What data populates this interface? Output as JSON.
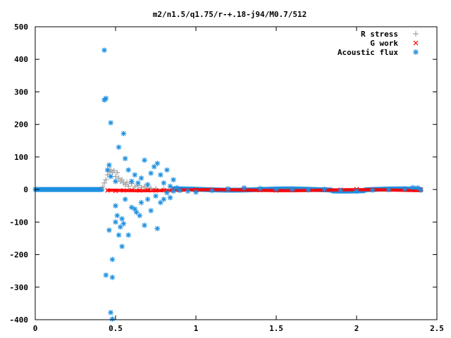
{
  "chart_data": {
    "type": "scatter",
    "title": "m2/n1.5/q1.75/r-+.18-j94/M0.7/512",
    "xlabel": "",
    "ylabel": "",
    "xlim": [
      0,
      2.5
    ],
    "ylim": [
      -400,
      500
    ],
    "x_ticks": [
      "0",
      "0.5",
      "1",
      "1.5",
      "2",
      "2.5"
    ],
    "y_ticks": [
      "500",
      "400",
      "300",
      "200",
      "100",
      "0",
      "-100",
      "-200",
      "-300",
      "-400"
    ],
    "grid": false,
    "legend_position": "top-right",
    "series": [
      {
        "name": "R stress",
        "marker": "plus",
        "color": "#a0a0a0",
        "points": [
          [
            0.42,
            8
          ],
          [
            0.43,
            20
          ],
          [
            0.44,
            30
          ],
          [
            0.45,
            45
          ],
          [
            0.46,
            55
          ],
          [
            0.47,
            60
          ],
          [
            0.48,
            52
          ],
          [
            0.49,
            58
          ],
          [
            0.5,
            40
          ],
          [
            0.51,
            52
          ],
          [
            0.52,
            35
          ],
          [
            0.53,
            25
          ],
          [
            0.54,
            30
          ],
          [
            0.55,
            20
          ],
          [
            0.56,
            15
          ],
          [
            0.57,
            22
          ],
          [
            0.58,
            10
          ],
          [
            0.6,
            18
          ],
          [
            0.62,
            8
          ],
          [
            0.64,
            12
          ],
          [
            0.66,
            6
          ],
          [
            0.68,
            10
          ],
          [
            0.7,
            5
          ],
          [
            0.72,
            4
          ],
          [
            0.75,
            3
          ],
          [
            0.8,
            2
          ],
          [
            0.85,
            1
          ]
        ]
      },
      {
        "name": "G work",
        "marker": "cross",
        "color": "#ff0000",
        "points": [
          [
            0.45,
            -3
          ],
          [
            0.5,
            -4
          ],
          [
            0.55,
            -3
          ],
          [
            0.6,
            -2
          ],
          [
            0.65,
            -3
          ],
          [
            0.7,
            -2
          ],
          [
            0.75,
            -3
          ],
          [
            0.8,
            -2
          ],
          [
            0.85,
            -1
          ],
          [
            0.9,
            -1
          ],
          [
            1.0,
            -1
          ],
          [
            1.1,
            0
          ],
          [
            1.2,
            1
          ],
          [
            1.3,
            1
          ],
          [
            1.4,
            -2
          ],
          [
            1.5,
            -3
          ],
          [
            1.6,
            -2
          ],
          [
            1.7,
            -1
          ],
          [
            1.8,
            0
          ],
          [
            1.9,
            -1
          ],
          [
            2.0,
            1
          ],
          [
            2.1,
            0
          ],
          [
            2.2,
            -1
          ],
          [
            2.3,
            0
          ],
          [
            2.4,
            0
          ]
        ]
      },
      {
        "name": "Acoustic flux",
        "marker": "star",
        "color": "#1e90e0",
        "points": [
          [
            0.43,
            428
          ],
          [
            0.43,
            275
          ],
          [
            0.44,
            280
          ],
          [
            0.47,
            205
          ],
          [
            0.44,
            -263
          ],
          [
            0.48,
            -270
          ],
          [
            0.48,
            -215
          ],
          [
            0.47,
            -378
          ],
          [
            0.48,
            -398
          ],
          [
            0.46,
            -125
          ],
          [
            0.5,
            -100
          ],
          [
            0.5,
            -50
          ],
          [
            0.51,
            -80
          ],
          [
            0.52,
            -140
          ],
          [
            0.53,
            -115
          ],
          [
            0.54,
            -175
          ],
          [
            0.54,
            -90
          ],
          [
            0.55,
            -105
          ],
          [
            0.58,
            -140
          ],
          [
            0.56,
            -30
          ],
          [
            0.6,
            -55
          ],
          [
            0.62,
            -60
          ],
          [
            0.63,
            -70
          ],
          [
            0.65,
            -80
          ],
          [
            0.66,
            -40
          ],
          [
            0.68,
            -110
          ],
          [
            0.7,
            -30
          ],
          [
            0.72,
            -65
          ],
          [
            0.75,
            -20
          ],
          [
            0.76,
            -120
          ],
          [
            0.78,
            -40
          ],
          [
            0.8,
            -30
          ],
          [
            0.82,
            -10
          ],
          [
            0.84,
            -25
          ],
          [
            0.86,
            -5
          ],
          [
            0.45,
            60
          ],
          [
            0.46,
            75
          ],
          [
            0.47,
            40
          ],
          [
            0.5,
            25
          ],
          [
            0.52,
            130
          ],
          [
            0.55,
            172
          ],
          [
            0.56,
            95
          ],
          [
            0.58,
            60
          ],
          [
            0.6,
            25
          ],
          [
            0.62,
            45
          ],
          [
            0.64,
            20
          ],
          [
            0.66,
            35
          ],
          [
            0.68,
            90
          ],
          [
            0.7,
            15
          ],
          [
            0.72,
            50
          ],
          [
            0.74,
            70
          ],
          [
            0.76,
            80
          ],
          [
            0.78,
            45
          ],
          [
            0.8,
            20
          ],
          [
            0.82,
            60
          ],
          [
            0.84,
            10
          ],
          [
            0.86,
            30
          ],
          [
            0.88,
            5
          ],
          [
            0.9,
            -3
          ],
          [
            0.95,
            -5
          ],
          [
            1.0,
            -8
          ],
          [
            1.1,
            -3
          ],
          [
            1.2,
            2
          ],
          [
            1.3,
            5
          ],
          [
            1.4,
            3
          ],
          [
            1.5,
            1
          ],
          [
            1.6,
            0
          ],
          [
            1.7,
            -1
          ],
          [
            1.8,
            1
          ],
          [
            1.9,
            -3
          ],
          [
            2.0,
            -5
          ],
          [
            2.1,
            -2
          ],
          [
            2.2,
            0
          ],
          [
            2.3,
            2
          ],
          [
            2.35,
            6
          ],
          [
            2.38,
            5
          ],
          [
            2.4,
            -2
          ]
        ]
      }
    ]
  }
}
